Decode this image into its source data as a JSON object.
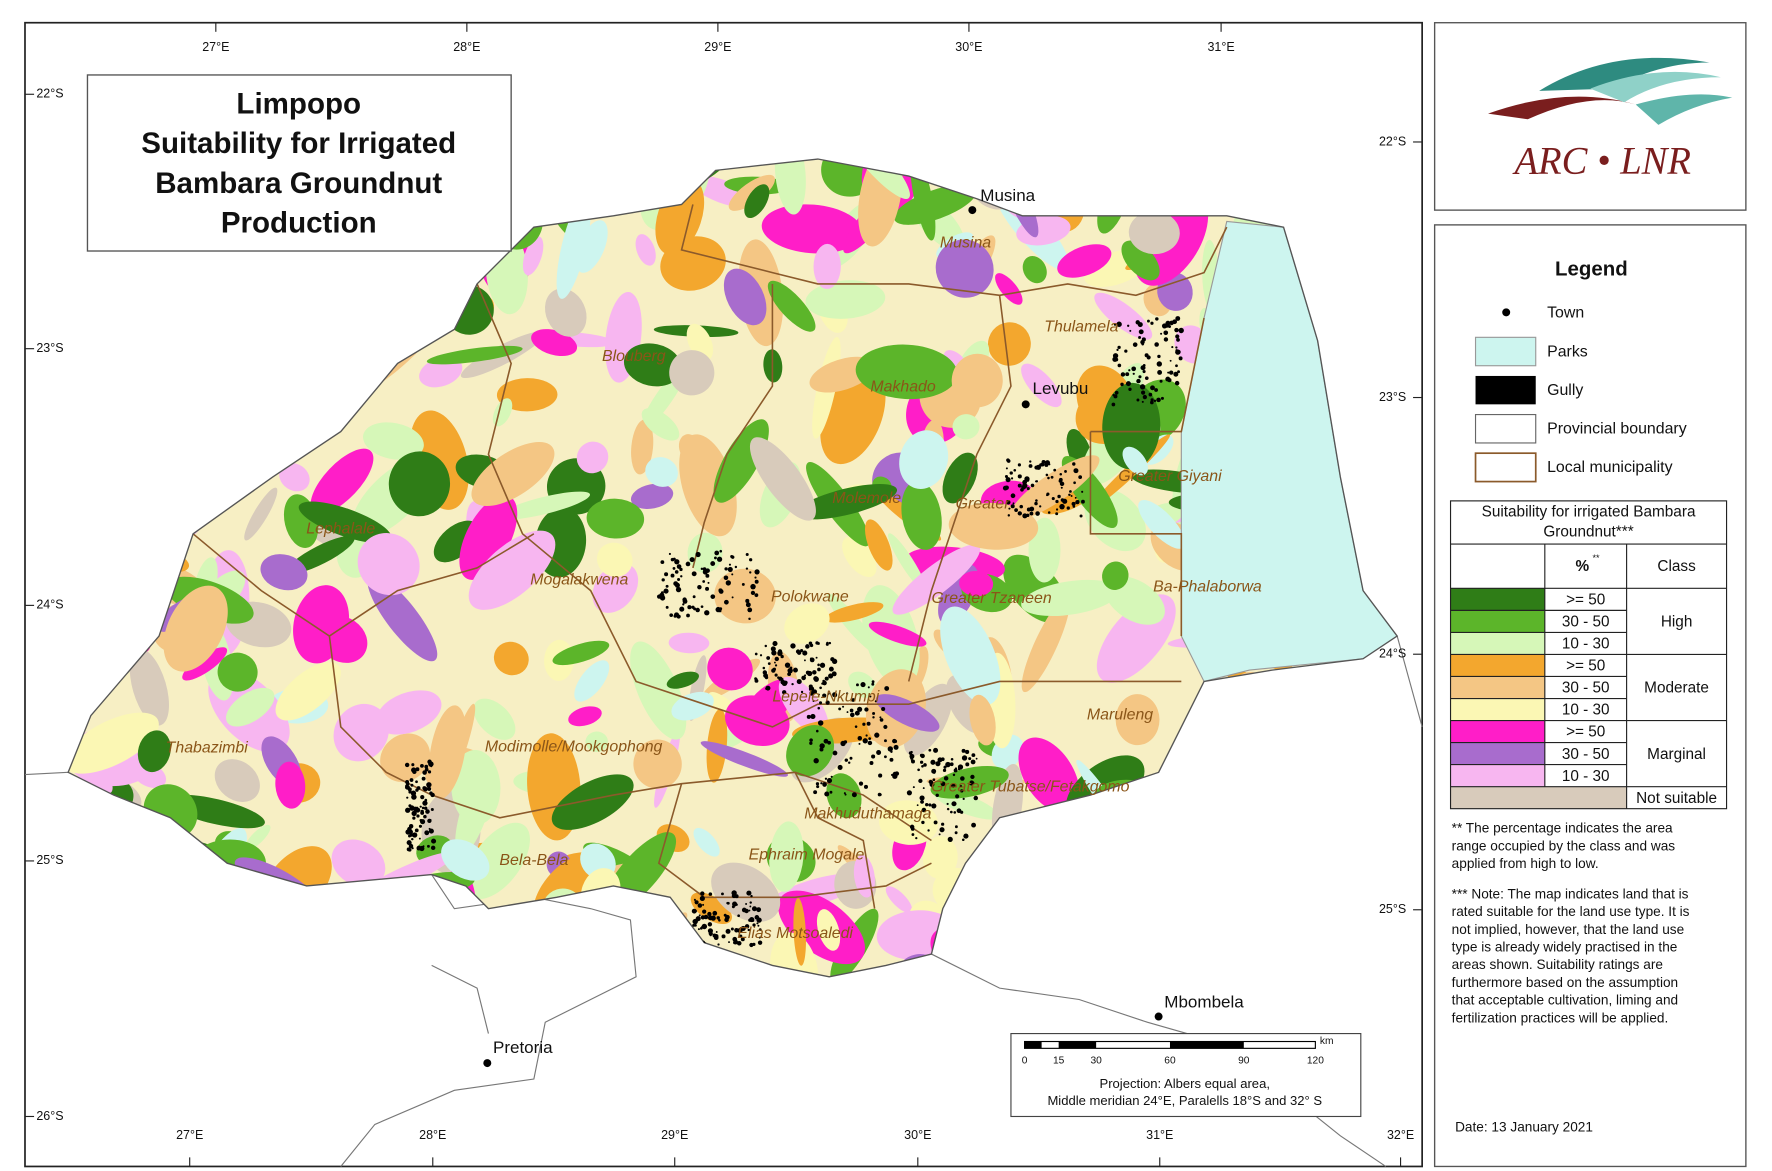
{
  "title": [
    "Limpopo",
    "Suitability for Irrigated",
    "Bambara Groundnut",
    "Production"
  ],
  "graticule": {
    "top": [
      "27°E",
      "28°E",
      "29°E",
      "30°E",
      "31°E"
    ],
    "bottom": [
      "27°E",
      "28°E",
      "29°E",
      "30°E",
      "31°E",
      "32°E"
    ],
    "left": [
      "22°S",
      "23°S",
      "24°S",
      "25°S",
      "26°S"
    ],
    "right": [
      "22°S",
      "23°S",
      "24°S",
      "25°S"
    ]
  },
  "towns": [
    "Musina",
    "Levubu",
    "Mbombela",
    "Pretoria"
  ],
  "municipalities": [
    "Musina",
    "Thulamela",
    "Blouberg",
    "Makhado",
    "Greater Giyani",
    "Greater",
    "Molemole",
    "Lephalale",
    "Mogalakwena",
    "Polokwane",
    "Greater Tzaneen",
    "Ba-Phalaborwa",
    "Lepele-Nkumpi",
    "Maruleng",
    "Thabazimbi",
    "Modimolle/Mookgophong",
    "Greater Tubatse/Fetakgomo",
    "Makhuduthamaga",
    "Ephraim Mogale",
    "Bela-Bela",
    "Elias Motsoaledi"
  ],
  "scale_bar": {
    "ticks": [
      0,
      15,
      30,
      60,
      90,
      120
    ],
    "unit": "km"
  },
  "projection": [
    "Projection: Albers equal area,",
    "Middle meridian 24°E, Paralells 18°S and 32° S"
  ],
  "logo": "ARC • LNR",
  "legend": {
    "title": "Legend",
    "items": [
      "Town",
      "Parks",
      "Gully",
      "Provincial boundary",
      "Local municipality"
    ],
    "parks_color": "#cdf5ef"
  },
  "suitability_table": {
    "title": [
      "Suitability for irrigated Bambara",
      "Groundnut***"
    ],
    "columns": [
      "%",
      "Class"
    ],
    "percent_note": "**",
    "rows": [
      {
        "range": ">= 50",
        "color": "#2f7d17"
      },
      {
        "range": "30 - 50",
        "color": "#5cb52a"
      },
      {
        "range": "10 - 30",
        "color": "#d6f7b8"
      },
      {
        "range": ">= 50",
        "color": "#f3a72e"
      },
      {
        "range": "30 - 50",
        "color": "#f4c684"
      },
      {
        "range": "10 - 30",
        "color": "#fbf7b4"
      },
      {
        "range": ">= 50",
        "color": "#ff1ec8"
      },
      {
        "range": "30 - 50",
        "color": "#a86ccd"
      },
      {
        "range": "10 - 30",
        "color": "#f7b6f0"
      }
    ],
    "classes": [
      "High",
      "Moderate",
      "Marginal",
      "Not suitable"
    ],
    "not_suitable_color": "#d8cbbb"
  },
  "notes": [
    [
      "** The percentage indicates the area",
      "range occupied by the class and was",
      "applied from high to low."
    ],
    [
      "*** Note: The map indicates land that is",
      "rated suitable for the land use type. It is",
      "not implied, however, that the land use",
      "type is already widely practised in the",
      "areas shown. Suitability ratings are",
      "furthermore based on the assumption",
      "that acceptable cultivation, liming and",
      "fertilization practices will be applied."
    ]
  ],
  "date": "Date: 13 January 2021"
}
